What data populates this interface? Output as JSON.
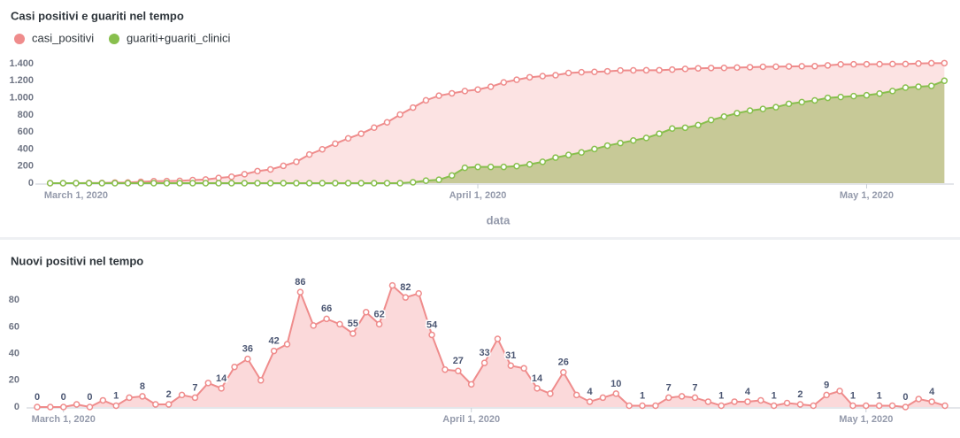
{
  "chart_data": [
    {
      "type": "area",
      "title": "Casi positivi e guariti nel tempo",
      "x_label": "data",
      "legend": "top-left",
      "grid": false,
      "data_labels": false,
      "x": [
        "2020-02-28",
        "2020-02-29",
        "2020-03-01",
        "2020-03-02",
        "2020-03-03",
        "2020-03-04",
        "2020-03-05",
        "2020-03-06",
        "2020-03-07",
        "2020-03-08",
        "2020-03-09",
        "2020-03-10",
        "2020-03-11",
        "2020-03-12",
        "2020-03-13",
        "2020-03-14",
        "2020-03-15",
        "2020-03-16",
        "2020-03-17",
        "2020-03-18",
        "2020-03-19",
        "2020-03-20",
        "2020-03-21",
        "2020-03-22",
        "2020-03-23",
        "2020-03-24",
        "2020-03-25",
        "2020-03-26",
        "2020-03-27",
        "2020-03-28",
        "2020-03-29",
        "2020-03-30",
        "2020-03-31",
        "2020-04-01",
        "2020-04-02",
        "2020-04-03",
        "2020-04-04",
        "2020-04-05",
        "2020-04-06",
        "2020-04-07",
        "2020-04-08",
        "2020-04-09",
        "2020-04-10",
        "2020-04-11",
        "2020-04-12",
        "2020-04-13",
        "2020-04-14",
        "2020-04-15",
        "2020-04-16",
        "2020-04-17",
        "2020-04-18",
        "2020-04-19",
        "2020-04-20",
        "2020-04-21",
        "2020-04-22",
        "2020-04-23",
        "2020-04-24",
        "2020-04-25",
        "2020-04-26",
        "2020-04-27",
        "2020-04-28",
        "2020-04-29",
        "2020-04-30",
        "2020-05-01",
        "2020-05-02",
        "2020-05-03",
        "2020-05-04",
        "2020-05-05",
        "2020-05-06",
        "2020-05-07"
      ],
      "series": [
        {
          "name": "casi_positivi",
          "color": "#ef8c8c",
          "fill": "#fbd9da",
          "values": [
            0,
            0,
            0,
            2,
            2,
            7,
            8,
            15,
            23,
            25,
            27,
            36,
            43,
            61,
            75,
            105,
            141,
            161,
            203,
            250,
            336,
            397,
            463,
            525,
            580,
            651,
            713,
            804,
            886,
            971,
            1025,
            1053,
            1080,
            1097,
            1130,
            1181,
            1212,
            1241,
            1255,
            1265,
            1291,
            1300,
            1304,
            1311,
            1321,
            1322,
            1323,
            1324,
            1331,
            1339,
            1346,
            1350,
            1351,
            1355,
            1359,
            1364,
            1365,
            1368,
            1370,
            1371,
            1380,
            1392,
            1393,
            1394,
            1395,
            1396,
            1396,
            1402,
            1406,
            1407
          ]
        },
        {
          "name": "guariti+guariti_clinici",
          "color": "#88bf4d",
          "fill": "#b6c07e",
          "values": [
            0,
            0,
            0,
            0,
            0,
            0,
            0,
            0,
            0,
            0,
            0,
            0,
            0,
            0,
            0,
            0,
            0,
            0,
            0,
            0,
            0,
            0,
            0,
            0,
            0,
            0,
            0,
            0,
            10,
            30,
            40,
            90,
            180,
            190,
            190,
            190,
            200,
            220,
            250,
            300,
            330,
            360,
            400,
            440,
            470,
            500,
            530,
            580,
            640,
            650,
            680,
            740,
            780,
            820,
            850,
            870,
            890,
            930,
            950,
            970,
            1000,
            1010,
            1020,
            1030,
            1050,
            1080,
            1120,
            1130,
            1140,
            1200
          ]
        }
      ],
      "xlim": [
        "2020-02-27",
        "2020-05-08"
      ],
      "xticks": [
        {
          "value": "2020-03-01",
          "label": "March 1, 2020"
        },
        {
          "value": "2020-04-01",
          "label": "April 1, 2020"
        },
        {
          "value": "2020-05-01",
          "label": "May 1, 2020"
        }
      ],
      "ylim": [
        0,
        1400
      ],
      "yticks": [
        0,
        200,
        400,
        600,
        800,
        {
          "value": 1000,
          "label": "1.000"
        },
        {
          "value": 1200,
          "label": "1.200"
        },
        {
          "value": 1400,
          "label": "1.400"
        }
      ]
    },
    {
      "type": "area",
      "title": "Nuovi positivi nel tempo",
      "grid": false,
      "data_labels": true,
      "color": "#ef8c8c",
      "fill": "#fbd9da",
      "x": [
        "2020-02-28",
        "2020-02-29",
        "2020-03-01",
        "2020-03-02",
        "2020-03-03",
        "2020-03-04",
        "2020-03-05",
        "2020-03-06",
        "2020-03-07",
        "2020-03-08",
        "2020-03-09",
        "2020-03-10",
        "2020-03-11",
        "2020-03-12",
        "2020-03-13",
        "2020-03-14",
        "2020-03-15",
        "2020-03-16",
        "2020-03-17",
        "2020-03-18",
        "2020-03-19",
        "2020-03-20",
        "2020-03-21",
        "2020-03-22",
        "2020-03-23",
        "2020-03-24",
        "2020-03-25",
        "2020-03-26",
        "2020-03-27",
        "2020-03-28",
        "2020-03-29",
        "2020-03-30",
        "2020-03-31",
        "2020-04-01",
        "2020-04-02",
        "2020-04-03",
        "2020-04-04",
        "2020-04-05",
        "2020-04-06",
        "2020-04-07",
        "2020-04-08",
        "2020-04-09",
        "2020-04-10",
        "2020-04-11",
        "2020-04-12",
        "2020-04-13",
        "2020-04-14",
        "2020-04-15",
        "2020-04-16",
        "2020-04-17",
        "2020-04-18",
        "2020-04-19",
        "2020-04-20",
        "2020-04-21",
        "2020-04-22",
        "2020-04-23",
        "2020-04-24",
        "2020-04-25",
        "2020-04-26",
        "2020-04-27",
        "2020-04-28",
        "2020-04-29",
        "2020-04-30",
        "2020-05-01",
        "2020-05-02",
        "2020-05-03",
        "2020-05-04",
        "2020-05-05",
        "2020-05-06",
        "2020-05-07"
      ],
      "values": [
        0,
        0,
        0,
        2,
        0,
        5,
        1,
        7,
        8,
        2,
        2,
        9,
        7,
        18,
        14,
        30,
        36,
        20,
        42,
        47,
        86,
        61,
        66,
        62,
        55,
        71,
        62,
        91,
        82,
        85,
        54,
        28,
        27,
        17,
        33,
        51,
        31,
        29,
        14,
        10,
        26,
        9,
        4,
        7,
        10,
        1,
        1,
        1,
        7,
        8,
        7,
        4,
        1,
        4,
        4,
        5,
        1,
        3,
        2,
        1,
        9,
        12,
        1,
        1,
        1,
        1,
        0,
        6,
        4,
        1
      ],
      "xlim": [
        "2020-02-28",
        "2020-05-07"
      ],
      "xticks": [
        {
          "value": "2020-03-01",
          "label": "March 1, 2020"
        },
        {
          "value": "2020-04-01",
          "label": "April 1, 2020"
        },
        {
          "value": "2020-05-01",
          "label": "May 1, 2020"
        }
      ],
      "ylim": [
        0,
        100
      ],
      "yticks": [
        0,
        20,
        40,
        60,
        80
      ]
    }
  ]
}
